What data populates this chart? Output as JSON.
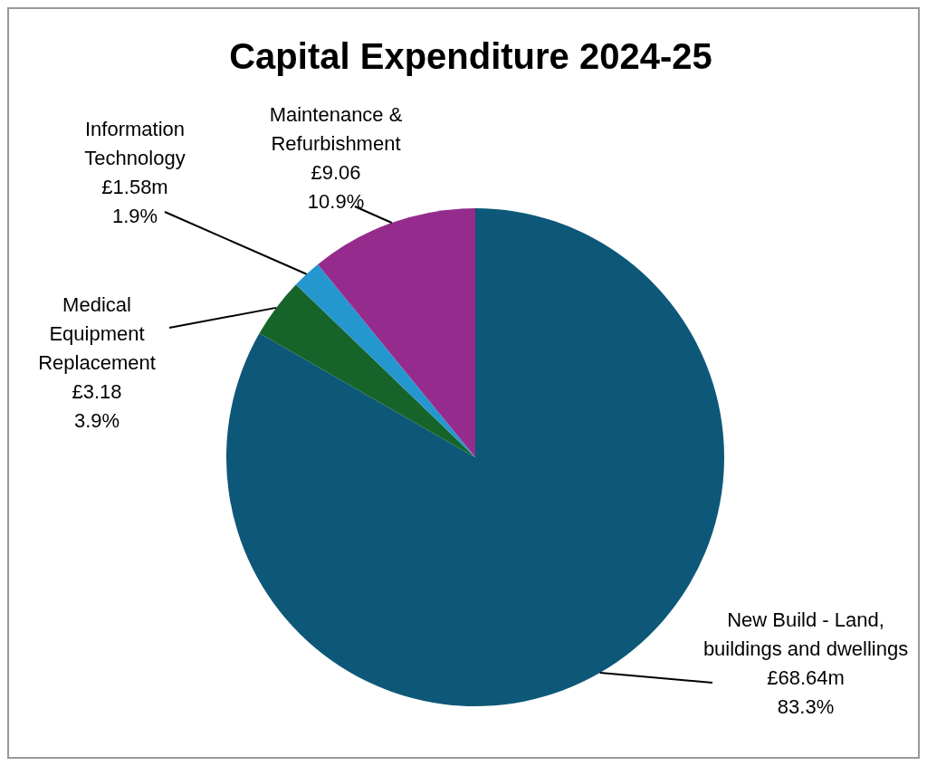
{
  "chart_data": {
    "type": "pie",
    "title": "Capital Expenditure 2024-25",
    "categories": [
      "New Build - Land, buildings and dwellings",
      "Medical Equipment Replacement",
      "Information Technology",
      "Maintenance & Refurbishment"
    ],
    "values": [
      83.3,
      3.9,
      1.9,
      10.9
    ],
    "value_labels": [
      "£68.64m\n83.3%",
      "£3.18\n3.9%",
      "£1.58m\n1.9%",
      "£9.06\n10.9%"
    ],
    "colors": [
      "#0d5878",
      "#17642a",
      "#2597cf",
      "#952b8c"
    ],
    "legend": false
  }
}
